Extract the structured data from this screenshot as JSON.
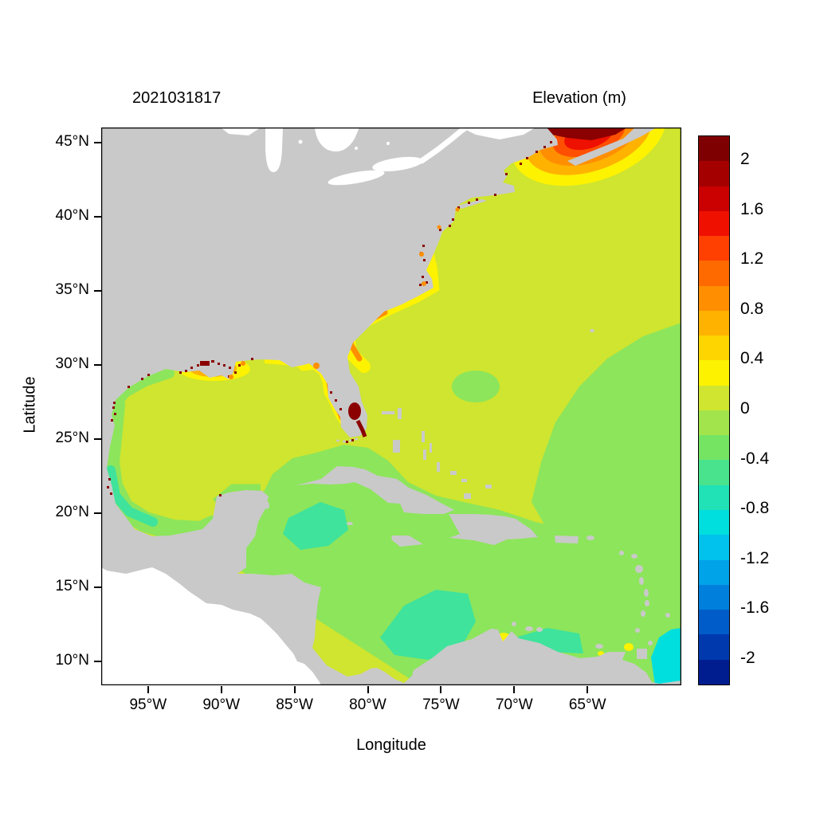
{
  "titles": {
    "datetime": "2021031817",
    "colorbar_title": "Elevation (m)"
  },
  "axes": {
    "x_label": "Longitude",
    "y_label": "Latitude",
    "x_ticks": [
      "95°W",
      "90°W",
      "85°W",
      "80°W",
      "75°W",
      "70°W",
      "65°W"
    ],
    "y_ticks": [
      "45°N",
      "40°N",
      "35°N",
      "30°N",
      "25°N",
      "20°N",
      "15°N",
      "10°N"
    ]
  },
  "colorbar": {
    "labels": [
      "2",
      "1.6",
      "1.2",
      "0.8",
      "0.4",
      "0",
      "-0.4",
      "-0.8",
      "-1.2",
      "-1.6",
      "-2"
    ],
    "colors": [
      "#7f0000",
      "#a50000",
      "#cb0000",
      "#ef1000",
      "#ff4000",
      "#ff6a00",
      "#ff8f00",
      "#ffb200",
      "#ffd500",
      "#fdf200",
      "#cfe52f",
      "#a2e44c",
      "#75e463",
      "#4ae38d",
      "#21e1b6",
      "#00dfdd",
      "#00c2ec",
      "#00a2e8",
      "#007fdd",
      "#005cc8",
      "#0039ae",
      "#001d8f"
    ],
    "min": -2.2,
    "max": 2.2,
    "step": 0.2
  },
  "palette": {
    "land": "#c9c9c9",
    "lake_white": "#ffffff",
    "ocean_base": "#cfe52f",
    "green": "#8de55b",
    "teal": "#3fe39b",
    "cyan": "#00dfdd",
    "yellow": "#fdf200",
    "amber": "#ffb200",
    "orange": "#ff8f00",
    "orange_red": "#ff4f00",
    "red": "#ee1000",
    "dark_red": "#8b0000",
    "frame": "#000000"
  },
  "chart_data": {
    "type": "heatmap",
    "title": "2021031817",
    "colorbar_title": "Elevation (m)",
    "xlabel": "Longitude",
    "ylabel": "Latitude",
    "x_ticks": [
      "95°W",
      "90°W",
      "85°W",
      "80°W",
      "75°W",
      "70°W",
      "65°W"
    ],
    "y_ticks": [
      "45°N",
      "40°N",
      "35°N",
      "30°N",
      "25°N",
      "20°N",
      "15°N",
      "10°N"
    ],
    "xlim": [
      "98°W",
      "59°W"
    ],
    "ylim": [
      "8.5°N",
      "46°N"
    ],
    "colorbar_range_m": [
      -2.2,
      2.2
    ],
    "contour_interval_m": 0.2,
    "colorbar_tick_values": [
      2,
      1.6,
      1.2,
      0.8,
      0.4,
      0,
      -0.4,
      -0.8,
      -1.2,
      -1.6,
      -2
    ],
    "legend_position": "right",
    "land_style": "gray land masses, white no-data Pacific region and Great Lakes",
    "features": [
      {
        "region": "Bay of Fundy / Gulf of Maine (43-46N, 63-70W)",
        "elevation_m": "0.4 rising to >2; dark-red maximum at head of Bay of Fundy"
      },
      {
        "region": "Open NW Atlantic and central Gulf of Mexico",
        "elevation_m": "0.2 to 0.4"
      },
      {
        "region": "Central Atlantic east of ~68W, 15-33N",
        "elevation_m": "0 to 0.2"
      },
      {
        "region": "Caribbean Sea",
        "elevation_m": "-0.2 to 0.2 with -0.4 teal patches off Colombia, Venezuela and south of Cuba"
      },
      {
        "region": "SE corner near Orinoco outflow (~59W, 9-13N)",
        "elevation_m": "-0.6 to -0.8 (cyan)"
      },
      {
        "region": "Louisiana-Mississippi coast (29-30.5N, 89-92W)",
        "elevation_m": "0.6 to >2 with dark-red flooded coastal cells"
      },
      {
        "region": "Lake Okeechobee / SE Florida (~27N, 81W)",
        "elevation_m": ">2 (dark red)"
      },
      {
        "region": "US southeast coastal fringe, Florida to Chesapeake",
        "elevation_m": "0.4 to 1.0 (yellow-orange band)"
      },
      {
        "region": "West Florida shelf coastal fringe",
        "elevation_m": "0.4 to 0.8"
      },
      {
        "region": "Estuaries/lagoons along US East, Gulf and Mexico coasts",
        "elevation_m": ">2 scattered dark-red specks"
      },
      {
        "region": "Gulf of Venezuela and Gulf of Paria spots (~10N)",
        "elevation_m": "0.4 to 0.6 (yellow)"
      },
      {
        "region": "Western Gulf of Mexico / Bay of Campeche fringe",
        "elevation_m": "-0.2 to 0 (green) with -0.4 teal patch"
      }
    ]
  }
}
